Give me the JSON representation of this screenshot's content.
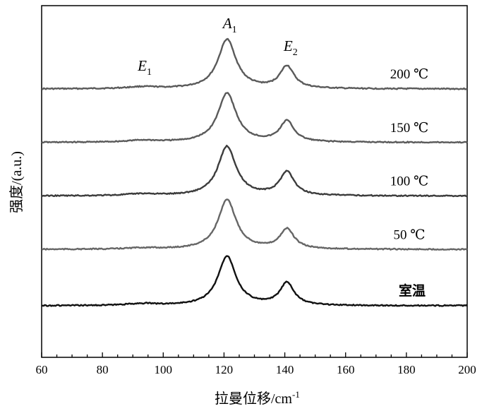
{
  "chart_data": {
    "type": "line",
    "xlabel": "拉曼位移/cm",
    "xlabel_sup": "-1",
    "ylabel": "强度/(a.u.)",
    "xlim": [
      60,
      200
    ],
    "xticks": [
      "60",
      "80",
      "100",
      "120",
      "140",
      "160",
      "180",
      "200"
    ],
    "peak_labels": [
      {
        "main": "E",
        "sub": "1",
        "x": 93
      },
      {
        "main": "A",
        "sub": "1",
        "x": 121
      },
      {
        "main": "E",
        "sub": "2",
        "x": 141
      }
    ],
    "series": [
      {
        "name": "200 ℃",
        "color": "#5a5a5a",
        "baseline": 0.72,
        "intensities": {
          "E1": 0.012,
          "A1": 1.0,
          "E2": 0.45
        }
      },
      {
        "name": "150 ℃",
        "color": "#5a5a5a",
        "baseline": 0.53,
        "intensities": {
          "E1": 0.012,
          "A1": 1.0,
          "E2": 0.42
        }
      },
      {
        "name": "100 ℃",
        "color": "#3c3c3c",
        "baseline": 0.34,
        "intensities": {
          "E1": 0.012,
          "A1": 1.0,
          "E2": 0.48
        }
      },
      {
        "name": "50 ℃",
        "color": "#666666",
        "baseline": 0.15,
        "intensities": {
          "E1": 0.008,
          "A1": 1.0,
          "E2": 0.4
        }
      },
      {
        "name": "室温",
        "color": "#111111",
        "baseline": -0.05,
        "intensities": {
          "E1": 0.012,
          "A1": 1.0,
          "E2": 0.45
        }
      }
    ]
  }
}
